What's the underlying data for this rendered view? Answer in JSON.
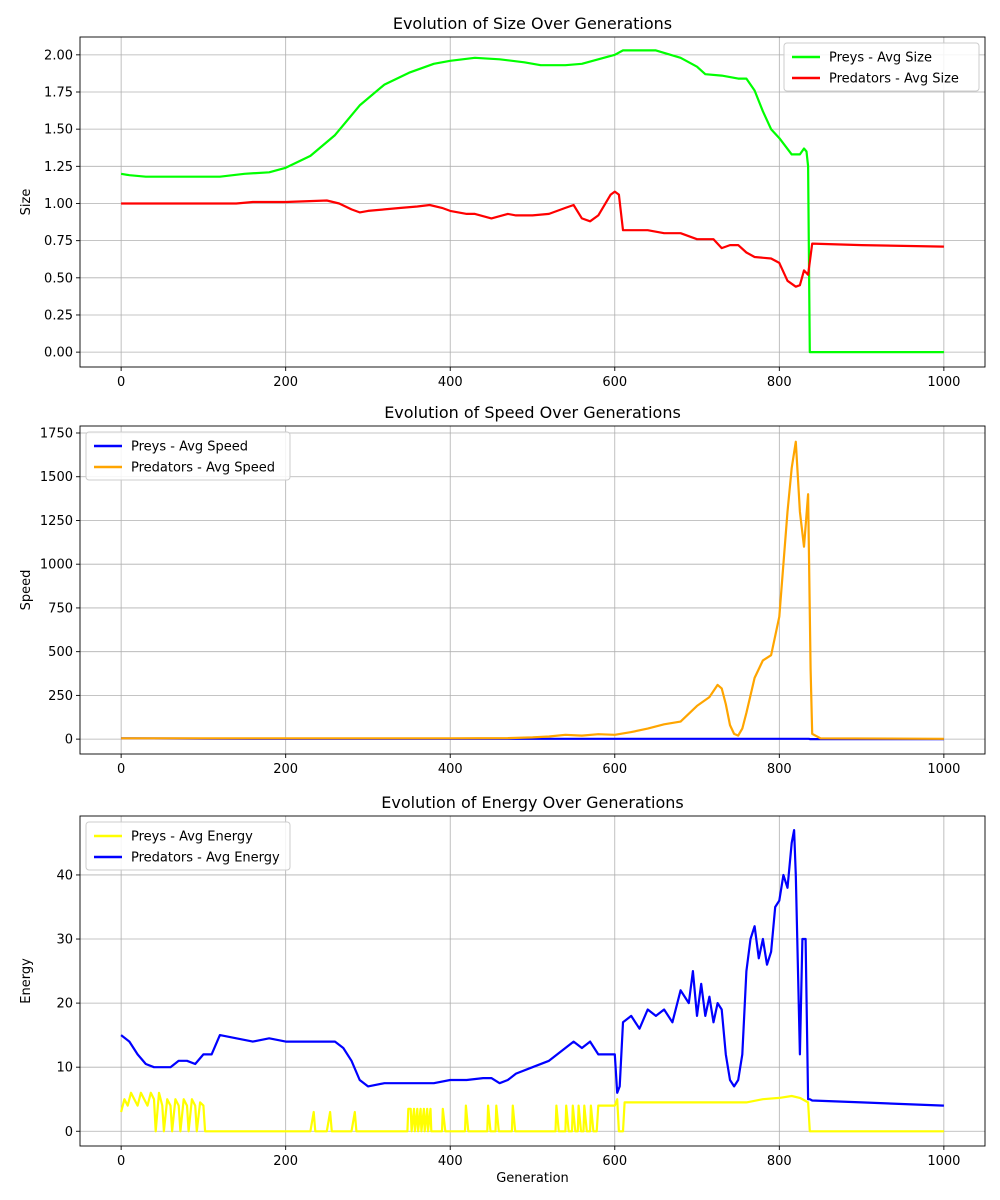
{
  "chart_data": [
    {
      "type": "line",
      "title": "Evolution of Size Over Generations",
      "xlabel": "",
      "ylabel": "Size",
      "xlim": [
        -50,
        1050
      ],
      "ylim": [
        -0.1,
        2.12
      ],
      "xticks": [
        0,
        200,
        400,
        600,
        800,
        1000
      ],
      "yticks": [
        0.0,
        0.25,
        0.5,
        0.75,
        1.0,
        1.25,
        1.5,
        1.75,
        2.0
      ],
      "ytick_labels": [
        "0.00",
        "0.25",
        "0.50",
        "0.75",
        "1.00",
        "1.25",
        "1.50",
        "1.75",
        "2.00"
      ],
      "grid": true,
      "legend_position": "top-right",
      "series": [
        {
          "name": "Preys - Avg Size",
          "color": "#00ff00",
          "x": [
            0,
            10,
            30,
            60,
            100,
            120,
            150,
            180,
            200,
            230,
            260,
            290,
            320,
            350,
            380,
            400,
            430,
            460,
            490,
            510,
            520,
            540,
            560,
            580,
            600,
            610,
            620,
            650,
            680,
            700,
            710,
            730,
            750,
            760,
            770,
            780,
            790,
            800,
            815,
            825,
            830,
            833,
            835,
            837,
            850,
            900,
            1000
          ],
          "y": [
            1.2,
            1.19,
            1.18,
            1.18,
            1.18,
            1.18,
            1.2,
            1.21,
            1.24,
            1.32,
            1.46,
            1.66,
            1.8,
            1.88,
            1.94,
            1.96,
            1.98,
            1.97,
            1.95,
            1.93,
            1.93,
            1.93,
            1.94,
            1.97,
            2.0,
            2.03,
            2.03,
            2.03,
            1.98,
            1.92,
            1.87,
            1.86,
            1.84,
            1.84,
            1.76,
            1.62,
            1.5,
            1.44,
            1.33,
            1.33,
            1.37,
            1.35,
            1.25,
            0.0,
            0.0,
            0.0,
            0.0
          ]
        },
        {
          "name": "Predators - Avg Size",
          "color": "#ff0000",
          "x": [
            0,
            100,
            140,
            160,
            200,
            250,
            265,
            280,
            290,
            300,
            320,
            340,
            360,
            375,
            390,
            400,
            420,
            430,
            450,
            470,
            480,
            500,
            520,
            540,
            550,
            560,
            570,
            580,
            595,
            600,
            605,
            610,
            620,
            640,
            660,
            680,
            700,
            720,
            730,
            740,
            750,
            760,
            770,
            790,
            800,
            810,
            820,
            825,
            830,
            835,
            840,
            900,
            1000
          ],
          "y": [
            1.0,
            1.0,
            1.0,
            1.01,
            1.01,
            1.02,
            1.0,
            0.96,
            0.94,
            0.95,
            0.96,
            0.97,
            0.98,
            0.99,
            0.97,
            0.95,
            0.93,
            0.93,
            0.9,
            0.93,
            0.92,
            0.92,
            0.93,
            0.97,
            0.99,
            0.9,
            0.88,
            0.92,
            1.06,
            1.08,
            1.06,
            0.82,
            0.82,
            0.82,
            0.8,
            0.8,
            0.76,
            0.76,
            0.7,
            0.72,
            0.72,
            0.67,
            0.64,
            0.63,
            0.6,
            0.48,
            0.44,
            0.45,
            0.55,
            0.52,
            0.73,
            0.72,
            0.71
          ]
        }
      ]
    },
    {
      "type": "line",
      "title": "Evolution of Speed Over Generations",
      "xlabel": "",
      "ylabel": "Speed",
      "xlim": [
        -50,
        1050
      ],
      "ylim": [
        -85,
        1790
      ],
      "xticks": [
        0,
        200,
        400,
        600,
        800,
        1000
      ],
      "yticks": [
        0,
        250,
        500,
        750,
        1000,
        1250,
        1500,
        1750
      ],
      "ytick_labels": [
        "0",
        "250",
        "500",
        "750",
        "1000",
        "1250",
        "1500",
        "1750"
      ],
      "grid": true,
      "legend_position": "top-left",
      "series": [
        {
          "name": "Preys - Avg Speed",
          "color": "#0000ff",
          "x": [
            0,
            100,
            200,
            300,
            400,
            500,
            600,
            700,
            800,
            836,
            837,
            1000
          ],
          "y": [
            5,
            3,
            2,
            2,
            2,
            2,
            2,
            2,
            2,
            2,
            0,
            0
          ]
        },
        {
          "name": "Predators - Avg Speed",
          "color": "#ffa500",
          "x": [
            0,
            200,
            400,
            470,
            500,
            520,
            540,
            560,
            580,
            600,
            620,
            640,
            660,
            680,
            700,
            715,
            725,
            730,
            735,
            740,
            745,
            750,
            755,
            760,
            770,
            780,
            790,
            800,
            805,
            810,
            815,
            820,
            825,
            830,
            835,
            838,
            840,
            850,
            1000
          ],
          "y": [
            5,
            5,
            5,
            6,
            10,
            15,
            25,
            20,
            28,
            25,
            40,
            60,
            85,
            100,
            190,
            240,
            310,
            290,
            200,
            80,
            30,
            20,
            60,
            150,
            350,
            450,
            480,
            700,
            1000,
            1300,
            1550,
            1700,
            1300,
            1100,
            1400,
            400,
            30,
            5,
            2
          ]
        }
      ]
    },
    {
      "type": "line",
      "title": "Evolution of Energy Over Generations",
      "xlabel": "Generation",
      "ylabel": "Energy",
      "xlim": [
        -50,
        1050
      ],
      "ylim": [
        -2.3,
        49.2
      ],
      "xticks": [
        0,
        200,
        400,
        600,
        800,
        1000
      ],
      "yticks": [
        0,
        10,
        20,
        30,
        40
      ],
      "ytick_labels": [
        "0",
        "10",
        "20",
        "30",
        "40"
      ],
      "grid": true,
      "legend_position": "top-left",
      "series": [
        {
          "name": "Preys - Avg Energy",
          "color": "#ffff00",
          "x": [
            0,
            4,
            8,
            12,
            16,
            20,
            24,
            28,
            32,
            36,
            40,
            42,
            46,
            50,
            52,
            56,
            60,
            62,
            66,
            70,
            72,
            76,
            80,
            82,
            86,
            90,
            92,
            96,
            100,
            102,
            106,
            230,
            234,
            236,
            250,
            254,
            256,
            280,
            284,
            286,
            348,
            349,
            352,
            353,
            356,
            357,
            360,
            361,
            364,
            365,
            368,
            369,
            372,
            373,
            376,
            377,
            380,
            390,
            391,
            394,
            418,
            419,
            422,
            445,
            446,
            449,
            455,
            456,
            459,
            475,
            476,
            479,
            528,
            529,
            532,
            540,
            541,
            544,
            548,
            549,
            552,
            555,
            556,
            559,
            562,
            563,
            566,
            570,
            571,
            574,
            578,
            580,
            600,
            603,
            605,
            610,
            612,
            760,
            780,
            800,
            815,
            825,
            835,
            837,
            850,
            1000
          ],
          "y": [
            3,
            5,
            4,
            6,
            5,
            4,
            6,
            5,
            4,
            6,
            5,
            0,
            6,
            4,
            0,
            5,
            4,
            0,
            5,
            4,
            0,
            5,
            4,
            0,
            5,
            4,
            0,
            4.5,
            4,
            0,
            0,
            0,
            3,
            0,
            0,
            3,
            0,
            0,
            3,
            0,
            0,
            3.5,
            3.5,
            0,
            3.5,
            0,
            3.5,
            0,
            3.5,
            0,
            3.5,
            0,
            3.5,
            0,
            3.5,
            0,
            0,
            0,
            3.5,
            0,
            0,
            4,
            0,
            0,
            4,
            0,
            0,
            4,
            0,
            0,
            4,
            0,
            0,
            4,
            0,
            0,
            4,
            0,
            0,
            4,
            0,
            0,
            4,
            0,
            0,
            4,
            0,
            0,
            4,
            0,
            0,
            4,
            4,
            5,
            0,
            0,
            4.5,
            4.5,
            5,
            5.2,
            5.5,
            5.2,
            4.5,
            0,
            0,
            0
          ]
        },
        {
          "name": "Predators - Avg Energy",
          "color": "#0000ff",
          "x": [
            0,
            10,
            20,
            30,
            40,
            50,
            60,
            70,
            80,
            90,
            100,
            110,
            120,
            140,
            160,
            180,
            200,
            220,
            240,
            260,
            270,
            280,
            290,
            300,
            320,
            340,
            360,
            380,
            400,
            420,
            440,
            450,
            460,
            470,
            480,
            500,
            520,
            540,
            550,
            560,
            570,
            580,
            590,
            600,
            603,
            606,
            610,
            620,
            630,
            640,
            650,
            660,
            670,
            680,
            690,
            695,
            700,
            705,
            710,
            715,
            720,
            725,
            730,
            735,
            740,
            745,
            750,
            755,
            760,
            765,
            770,
            775,
            780,
            785,
            790,
            795,
            800,
            805,
            810,
            815,
            818,
            820,
            825,
            828,
            832,
            835,
            837,
            840,
            900,
            1000
          ],
          "y": [
            15,
            14,
            12,
            10.5,
            10,
            10,
            10,
            11,
            11,
            10.5,
            12,
            12,
            15,
            14.5,
            14,
            14.5,
            14,
            14,
            14,
            14,
            13,
            11,
            8,
            7,
            7.5,
            7.5,
            7.5,
            7.5,
            8,
            8,
            8.3,
            8.3,
            7.5,
            8,
            9,
            10,
            11,
            13,
            14,
            13,
            14,
            12,
            12,
            12,
            6,
            7,
            17,
            18,
            16,
            19,
            18,
            19,
            17,
            22,
            20,
            25,
            18,
            23,
            18,
            21,
            17,
            20,
            19,
            12,
            8,
            7,
            8,
            12,
            25,
            30,
            32,
            27,
            30,
            26,
            28,
            35,
            36,
            40,
            38,
            45,
            47,
            40,
            12,
            30,
            30,
            5,
            5,
            4.8,
            4.5,
            4.0
          ]
        }
      ]
    }
  ]
}
